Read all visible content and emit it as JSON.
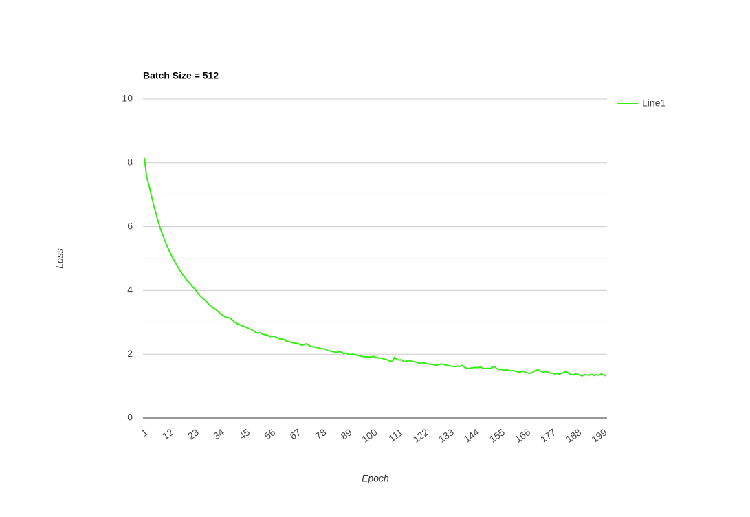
{
  "chart_data": {
    "type": "line",
    "title": "Batch Size = 512",
    "x_label": "Epoch",
    "y_label": "Loss",
    "categories": [
      1,
      null,
      null,
      null,
      null,
      null,
      null,
      null,
      null,
      null,
      null,
      12,
      null,
      null,
      null,
      null,
      null,
      null,
      null,
      null,
      null,
      null,
      23,
      null,
      null,
      null,
      null,
      null,
      null,
      null,
      null,
      null,
      null,
      34,
      null,
      null,
      null,
      null,
      null,
      null,
      null,
      null,
      null,
      null,
      45,
      null,
      null,
      null,
      null,
      null,
      null,
      null,
      null,
      null,
      null,
      56,
      null,
      null,
      null,
      null,
      null,
      null,
      null,
      null,
      null,
      null,
      67,
      null,
      null,
      null,
      null,
      null,
      null,
      null,
      null,
      null,
      null,
      78,
      null,
      null,
      null,
      null,
      null,
      null,
      null,
      null,
      null,
      null,
      89,
      null,
      null,
      null,
      null,
      null,
      null,
      null,
      null,
      null,
      null,
      100,
      null,
      null,
      null,
      null,
      null,
      null,
      null,
      null,
      null,
      null,
      111,
      null,
      null,
      null,
      null,
      null,
      null,
      null,
      null,
      null,
      null,
      122,
      null,
      null,
      null,
      null,
      null,
      null,
      null,
      null,
      null,
      null,
      133,
      null,
      null,
      null,
      null,
      null,
      null,
      null,
      null,
      null,
      null,
      144,
      null,
      null,
      null,
      null,
      null,
      null,
      null,
      null,
      null,
      null,
      155,
      null,
      null,
      null,
      null,
      null,
      null,
      null,
      null,
      null,
      null,
      166,
      null,
      null,
      null,
      null,
      null,
      null,
      null,
      null,
      null,
      null,
      177,
      null,
      null,
      null,
      null,
      null,
      null,
      null,
      null,
      null,
      null,
      188,
      null,
      null,
      null,
      null,
      null,
      null,
      null,
      null,
      null,
      null,
      199,
      null
    ],
    "series": [
      {
        "name": "Line1",
        "color": "#33ee11",
        "values": [
          8.15,
          7.55,
          7.3,
          6.98,
          6.68,
          6.41,
          6.15,
          5.92,
          5.72,
          5.53,
          5.36,
          5.2,
          5.05,
          4.92,
          4.79,
          4.67,
          4.56,
          4.45,
          4.35,
          4.27,
          4.19,
          4.1,
          4.03,
          3.92,
          3.83,
          3.76,
          3.7,
          3.63,
          3.56,
          3.5,
          3.44,
          3.39,
          3.33,
          3.26,
          3.22,
          3.16,
          3.15,
          3.13,
          3.07,
          3.0,
          2.96,
          2.93,
          2.9,
          2.87,
          2.84,
          2.81,
          2.78,
          2.74,
          2.69,
          2.66,
          2.68,
          2.63,
          2.61,
          2.6,
          2.56,
          2.55,
          2.57,
          2.53,
          2.49,
          2.48,
          2.47,
          2.42,
          2.4,
          2.38,
          2.36,
          2.35,
          2.34,
          2.31,
          2.28,
          2.3,
          2.33,
          2.28,
          2.24,
          2.23,
          2.22,
          2.2,
          2.18,
          2.17,
          2.16,
          2.12,
          2.1,
          2.09,
          2.07,
          2.06,
          2.08,
          2.07,
          2.02,
          2.04,
          2.0,
          1.99,
          2.01,
          1.98,
          1.96,
          1.95,
          1.93,
          1.92,
          1.92,
          1.91,
          1.92,
          1.93,
          1.9,
          1.88,
          1.88,
          1.86,
          1.84,
          1.82,
          1.79,
          1.77,
          1.91,
          1.83,
          1.82,
          1.83,
          1.77,
          1.78,
          1.8,
          1.79,
          1.77,
          1.75,
          1.73,
          1.71,
          1.74,
          1.72,
          1.7,
          1.69,
          1.68,
          1.67,
          1.66,
          1.67,
          1.7,
          1.68,
          1.66,
          1.65,
          1.63,
          1.62,
          1.61,
          1.63,
          1.62,
          1.65,
          1.6,
          1.56,
          1.55,
          1.57,
          1.58,
          1.59,
          1.58,
          1.6,
          1.56,
          1.55,
          1.56,
          1.55,
          1.58,
          1.62,
          1.55,
          1.52,
          1.52,
          1.5,
          1.51,
          1.5,
          1.48,
          1.49,
          1.47,
          1.45,
          1.43,
          1.48,
          1.45,
          1.42,
          1.4,
          1.41,
          1.46,
          1.5,
          1.51,
          1.47,
          1.43,
          1.46,
          1.44,
          1.41,
          1.4,
          1.38,
          1.39,
          1.38,
          1.4,
          1.43,
          1.46,
          1.4,
          1.36,
          1.35,
          1.38,
          1.37,
          1.34,
          1.32,
          1.36,
          1.35,
          1.34,
          1.37,
          1.33,
          1.36,
          1.34,
          1.38,
          1.36,
          1.32
        ]
      }
    ],
    "ylim": [
      0,
      10
    ],
    "yticks": [
      0,
      2,
      4,
      6,
      8,
      10
    ],
    "minor_yticks": [
      1,
      3,
      5,
      7,
      9
    ],
    "grid": true,
    "legend": "right"
  }
}
